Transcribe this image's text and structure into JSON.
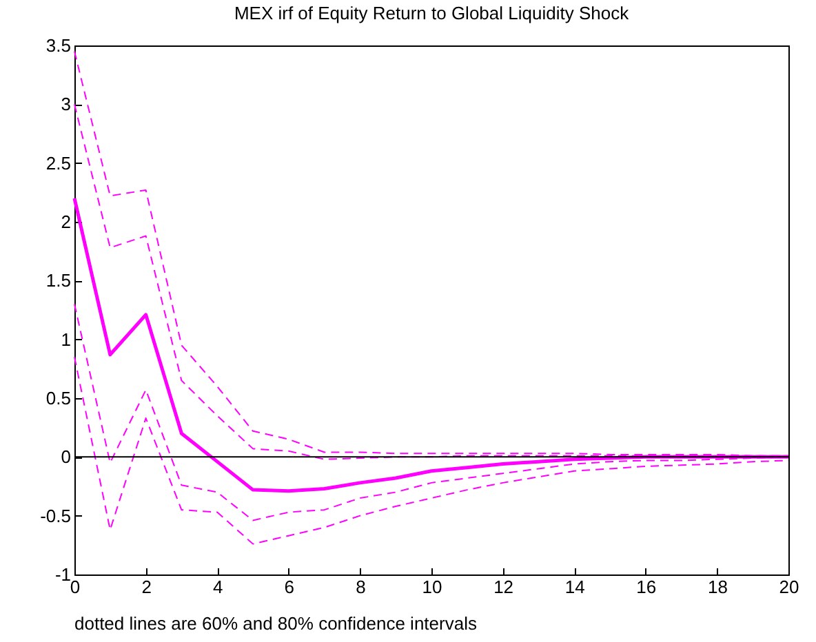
{
  "chart_data": {
    "type": "line",
    "title": "MEX irf of Equity Return to Global Liquidity Shock",
    "x": [
      0,
      1,
      2,
      3,
      4,
      5,
      6,
      7,
      8,
      9,
      10,
      11,
      12,
      13,
      14,
      15,
      16,
      17,
      18,
      19,
      20
    ],
    "series": [
      {
        "color": "#ff00ff",
        "line_style": "solid",
        "values": [
          2.2,
          0.87,
          1.21,
          0.2,
          -0.04,
          -0.28,
          -0.29,
          -0.27,
          -0.22,
          -0.18,
          -0.12,
          -0.09,
          -0.06,
          -0.04,
          -0.02,
          -0.01,
          0,
          0,
          0,
          0,
          0
        ]
      },
      {
        "color": "#ff00ff",
        "line_style": "dashed",
        "values": [
          3.45,
          2.22,
          2.27,
          0.95,
          0.6,
          0.22,
          0.15,
          0.04,
          0.04,
          0.03,
          0.03,
          0.03,
          0.03,
          0.03,
          0.03,
          0.02,
          0.02,
          0.02,
          0.02,
          0.01,
          0.01
        ]
      },
      {
        "color": "#ff00ff",
        "line_style": "dashed",
        "values": [
          3.0,
          1.78,
          1.88,
          0.65,
          0.35,
          0.07,
          0.05,
          -0.02,
          -0.01,
          0,
          0,
          0.01,
          0.01,
          0.01,
          0.01,
          0.01,
          0.01,
          0.01,
          0.01,
          0.01,
          0.01
        ]
      },
      {
        "color": "#ff00ff",
        "line_style": "dashed",
        "values": [
          1.3,
          -0.05,
          0.57,
          -0.24,
          -0.3,
          -0.54,
          -0.47,
          -0.45,
          -0.35,
          -0.3,
          -0.22,
          -0.18,
          -0.14,
          -0.1,
          -0.06,
          -0.04,
          -0.03,
          -0.03,
          -0.02,
          -0.01,
          0
        ]
      },
      {
        "color": "#ff00ff",
        "line_style": "dashed",
        "values": [
          0.85,
          -0.62,
          0.33,
          -0.45,
          -0.47,
          -0.74,
          -0.67,
          -0.6,
          -0.5,
          -0.42,
          -0.35,
          -0.28,
          -0.22,
          -0.17,
          -0.12,
          -0.1,
          -0.08,
          -0.07,
          -0.06,
          -0.04,
          -0.03
        ]
      }
    ],
    "xlim": [
      0,
      20
    ],
    "xticks": [
      0,
      2,
      4,
      6,
      8,
      10,
      12,
      14,
      16,
      18,
      20
    ],
    "ylim": [
      -1,
      3.5
    ],
    "yticks": [
      -1,
      -0.5,
      0,
      0.5,
      1,
      1.5,
      2,
      2.5,
      3,
      3.5
    ],
    "ref_lines": [
      {
        "axis": "y",
        "value": 0,
        "color": "#000000"
      }
    ],
    "annotations": [
      "dotted lines are 60% and 80% confidence intervals"
    ],
    "grid": false
  }
}
